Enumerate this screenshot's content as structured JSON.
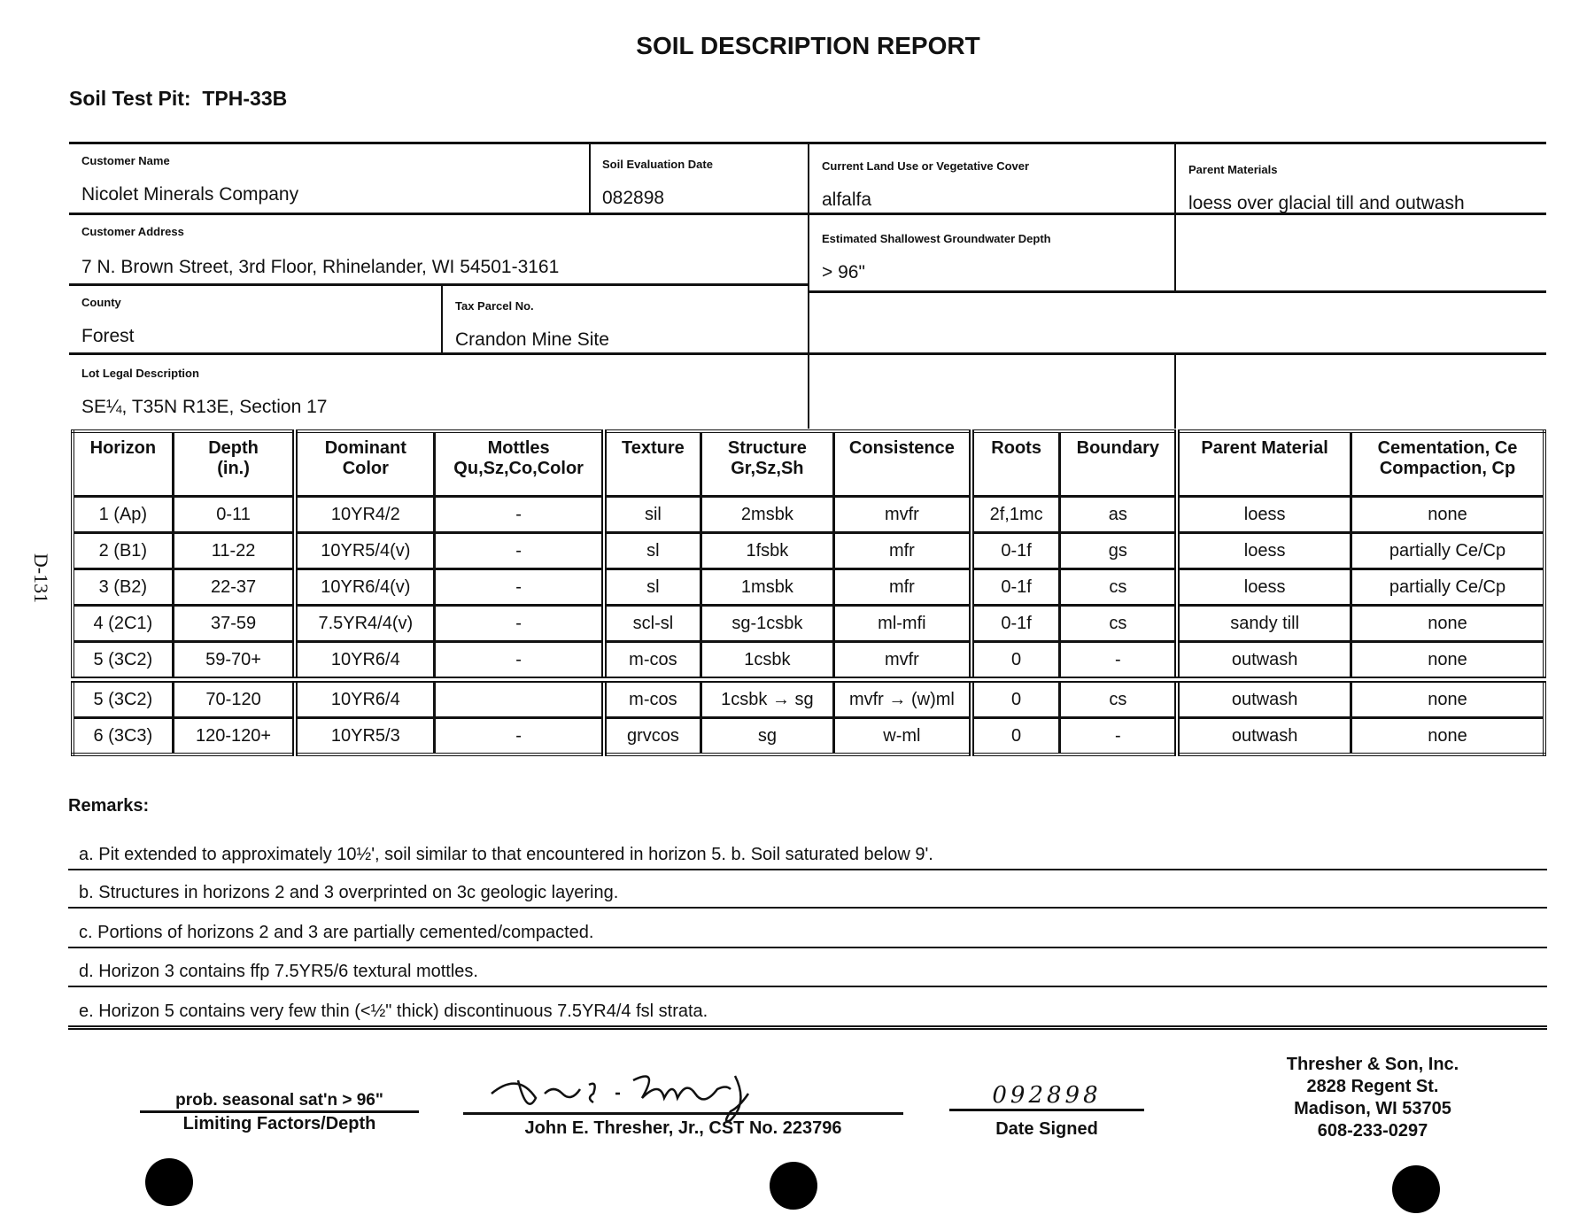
{
  "title": "SOIL DESCRIPTION REPORT",
  "test_pit": {
    "label": "Soil Test Pit:",
    "value": "TPH-33B"
  },
  "side_mark": "D-131",
  "form": {
    "customer_name": {
      "label": "Customer Name",
      "value": "Nicolet Minerals Company"
    },
    "evaluation_date": {
      "label": "Soil Evaluation Date",
      "value": "082898"
    },
    "land_use": {
      "label": "Current Land Use or Vegetative Cover",
      "value": "alfalfa"
    },
    "parent_materials": {
      "label": "Parent Materials",
      "value": "loess over glacial till and outwash"
    },
    "customer_address": {
      "label": "Customer Address",
      "value": "7 N. Brown Street, 3rd Floor, Rhinelander, WI  54501-3161"
    },
    "groundwater": {
      "label": "Estimated Shallowest Groundwater Depth",
      "value": "> 96\""
    },
    "county": {
      "label": "County",
      "value": "Forest"
    },
    "tax_parcel": {
      "label": "Tax Parcel No.",
      "value": "Crandon Mine Site"
    },
    "lot_legal": {
      "label": "Lot Legal Description",
      "value": "SE¼, T35N R13E, Section 17"
    }
  },
  "table": {
    "headers": [
      "Horizon",
      "Depth\n(in.)",
      "Dominant\nColor",
      "Mottles\nQu,Sz,Co,Color",
      "Texture",
      "Structure\nGr,Sz,Sh",
      "Consistence",
      "Roots",
      "Boundary",
      "Parent Material",
      "Cementation, Ce\nCompaction, Cp"
    ],
    "rows": [
      [
        "1 (Ap)",
        "0-11",
        "10YR4/2",
        "-",
        "sil",
        "2msbk",
        "mvfr",
        "2f,1mc",
        "as",
        "loess",
        "none"
      ],
      [
        "2 (B1)",
        "11-22",
        "10YR5/4(v)",
        "-",
        "sl",
        "1fsbk",
        "mfr",
        "0-1f",
        "gs",
        "loess",
        "partially Ce/Cp"
      ],
      [
        "3 (B2)",
        "22-37",
        "10YR6/4(v)",
        "-",
        "sl",
        "1msbk",
        "mfr",
        "0-1f",
        "cs",
        "loess",
        "partially Ce/Cp"
      ],
      [
        "4 (2C1)",
        "37-59",
        "7.5YR4/4(v)",
        "-",
        "scl-sl",
        "sg-1csbk",
        "ml-mfi",
        "0-1f",
        "cs",
        "sandy till",
        "none"
      ],
      [
        "5 (3C2)",
        "59-70+",
        "10YR6/4",
        "-",
        "m-cos",
        "1csbk",
        "mvfr",
        "0",
        "-",
        "outwash",
        "none"
      ],
      [
        "5 (3C2)",
        "70-120",
        "10YR6/4",
        "",
        "m-cos",
        "1csbk → sg",
        "mvfr → (w)ml",
        "0",
        "cs",
        "outwash",
        "none"
      ],
      [
        "6 (3C3)",
        "120-120+",
        "10YR5/3",
        "-",
        "grvcos",
        "sg",
        "w-ml",
        "0",
        "-",
        "outwash",
        "none"
      ]
    ]
  },
  "remarks": {
    "label": "Remarks:",
    "items": [
      "a.  Pit extended to approximately 10½', soil similar to that encountered in horizon 5.   b.  Soil saturated below 9'.",
      "b.  Structures in horizons 2 and 3 overprinted on 3c geologic layering.",
      "c.  Portions of horizons 2 and 3 are partially cemented/compacted.",
      "d.  Horizon 3 contains ffp 7.5YR5/6 textural mottles.",
      "e.  Horizon 5 contains very few thin (<½\" thick) discontinuous 7.5YR4/4 fsl strata."
    ]
  },
  "footer": {
    "limiting_value": "prob. seasonal sat'n > 96\"",
    "limiting_label": "Limiting Factors/Depth",
    "signature": "J. E. Thresher Jr.",
    "signer": "John E. Thresher, Jr., CST No. 223796",
    "date_value": "092898",
    "date_label": "Date Signed",
    "company": [
      "Thresher & Son, Inc.",
      "2828 Regent St.",
      "Madison, WI  53705",
      "608-233-0297"
    ]
  }
}
